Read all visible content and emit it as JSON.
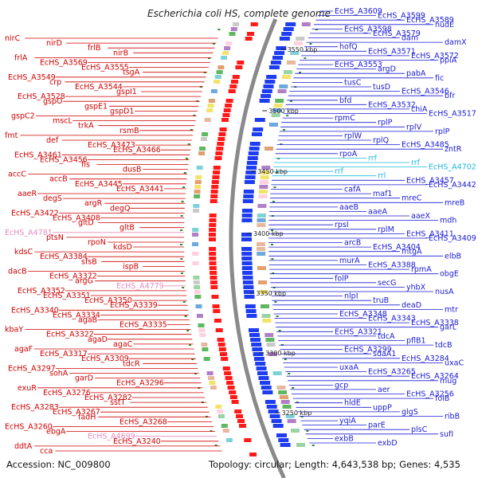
{
  "title": "Escherichia coli HS, complete genome",
  "footer": {
    "accession": "Accession: NC_009800",
    "summary": "Topology: circular; Length: 4,643,538 bp; Genes: 4,535"
  },
  "colors": {
    "left_label": "#d00000",
    "left_label_pink": "#e58cbd",
    "right_label": "#1a1ad6",
    "right_label_cyan": "#20b8e0",
    "backbone": "#8a8a8a",
    "tick": "#2e8b2e"
  },
  "kbp_marks": [
    "3550 kbp",
    "3500 kbp",
    "3450 kbp",
    "3400 kbp",
    "3350 kbp",
    "3300 kbp",
    "3250 kbp"
  ],
  "left_labels": [
    {
      "text": "nirC",
      "c": "red"
    },
    {
      "text": "nirD",
      "c": "red"
    },
    {
      "text": "frlB",
      "c": "red"
    },
    {
      "text": "nirB",
      "c": "red"
    },
    {
      "text": "frlA",
      "c": "red"
    },
    {
      "text": "EcHS_A3569",
      "c": "red"
    },
    {
      "text": "EcHS_A3555",
      "c": "red"
    },
    {
      "text": "tsgA",
      "c": "red"
    },
    {
      "text": "EcHS_A3549",
      "c": "red"
    },
    {
      "text": "crp",
      "c": "red"
    },
    {
      "text": "EcHS_A3544",
      "c": "red"
    },
    {
      "text": "gspI1",
      "c": "red"
    },
    {
      "text": "EcHS_A3528",
      "c": "red"
    },
    {
      "text": "gspO",
      "c": "red"
    },
    {
      "text": "gspE1",
      "c": "red"
    },
    {
      "text": "gspD1",
      "c": "red"
    },
    {
      "text": "gspC2",
      "c": "red"
    },
    {
      "text": "mscL",
      "c": "red"
    },
    {
      "text": "trkA",
      "c": "red"
    },
    {
      "text": "rsmB",
      "c": "red"
    },
    {
      "text": "fmt",
      "c": "red"
    },
    {
      "text": "def",
      "c": "red"
    },
    {
      "text": "EcHS_A3473",
      "c": "red"
    },
    {
      "text": "EcHS_A3466",
      "c": "red"
    },
    {
      "text": "EcHS_A3461",
      "c": "red"
    },
    {
      "text": "EcHS_A3456",
      "c": "red"
    },
    {
      "text": "fis",
      "c": "red"
    },
    {
      "text": "dusB",
      "c": "red"
    },
    {
      "text": "accC",
      "c": "red"
    },
    {
      "text": "accB",
      "c": "red"
    },
    {
      "text": "EcHS_A3445",
      "c": "red"
    },
    {
      "text": "EcHS_A3441",
      "c": "red"
    },
    {
      "text": "aaeR",
      "c": "red"
    },
    {
      "text": "degS",
      "c": "red"
    },
    {
      "text": "argR",
      "c": "red"
    },
    {
      "text": "degQ",
      "c": "red"
    },
    {
      "text": "EcHS_A3422",
      "c": "red"
    },
    {
      "text": "EcHS_A3408",
      "c": "red"
    },
    {
      "text": "gltD",
      "c": "red"
    },
    {
      "text": "gltB",
      "c": "red"
    },
    {
      "text": "EcHS_A4781",
      "c": "pink"
    },
    {
      "text": "ptsN",
      "c": "red"
    },
    {
      "text": "rpoN",
      "c": "red"
    },
    {
      "text": "kdsD",
      "c": "red"
    },
    {
      "text": "kdsC",
      "c": "red"
    },
    {
      "text": "EcHS_A3384",
      "c": "red"
    },
    {
      "text": "sfsB",
      "c": "red"
    },
    {
      "text": "ispB",
      "c": "red"
    },
    {
      "text": "dacB",
      "c": "red"
    },
    {
      "text": "EcHS_A3372",
      "c": "red"
    },
    {
      "text": "argG",
      "c": "red"
    },
    {
      "text": "EcHS_A4779",
      "c": "pink"
    },
    {
      "text": "EcHS_A3352",
      "c": "red"
    },
    {
      "text": "EcHS_A3351",
      "c": "red"
    },
    {
      "text": "EcHS_A3350",
      "c": "red"
    },
    {
      "text": "EcHS_A3339",
      "c": "red"
    },
    {
      "text": "EcHS_A3340",
      "c": "red"
    },
    {
      "text": "EcHS_A3334",
      "c": "red"
    },
    {
      "text": "agaB",
      "c": "red"
    },
    {
      "text": "EcHS_A3335",
      "c": "red"
    },
    {
      "text": "kbaY",
      "c": "red"
    },
    {
      "text": "EcHS_A3322",
      "c": "red"
    },
    {
      "text": "agaD",
      "c": "red"
    },
    {
      "text": "agaC",
      "c": "red"
    },
    {
      "text": "agaF",
      "c": "red"
    },
    {
      "text": "EcHS_A3317",
      "c": "red"
    },
    {
      "text": "EcHS_A3309",
      "c": "red"
    },
    {
      "text": "tdcR",
      "c": "red"
    },
    {
      "text": "EcHS_A3297",
      "c": "red"
    },
    {
      "text": "sohA",
      "c": "red"
    },
    {
      "text": "garD",
      "c": "red"
    },
    {
      "text": "EcHS_A3296",
      "c": "red"
    },
    {
      "text": "exuR",
      "c": "red"
    },
    {
      "text": "EcHS_A3276",
      "c": "red"
    },
    {
      "text": "EcHS_A3282",
      "c": "red"
    },
    {
      "text": "sstT",
      "c": "red"
    },
    {
      "text": "EcHS_A3283",
      "c": "red"
    },
    {
      "text": "EcHS_A3267",
      "c": "red"
    },
    {
      "text": "fadH",
      "c": "red"
    },
    {
      "text": "EcHS_A3268",
      "c": "red"
    },
    {
      "text": "EcHS_A3260",
      "c": "red"
    },
    {
      "text": "ebgA",
      "c": "red"
    },
    {
      "text": "EcHS_A4699",
      "c": "pink"
    },
    {
      "text": "EcHS_A3240",
      "c": "red"
    },
    {
      "text": "ddtA",
      "c": "red"
    },
    {
      "text": "cca",
      "c": "red"
    }
  ],
  "right_labels": [
    {
      "text": "EcHS_A3609",
      "c": "blue"
    },
    {
      "text": "EcHS_A3599",
      "c": "blue"
    },
    {
      "text": "EcHS_A3589",
      "c": "blue"
    },
    {
      "text": "nudE",
      "c": "blue"
    },
    {
      "text": "EcHS_A3598",
      "c": "blue"
    },
    {
      "text": "EcHS_A3579",
      "c": "blue"
    },
    {
      "text": "dam",
      "c": "blue"
    },
    {
      "text": "damX",
      "c": "blue"
    },
    {
      "text": "hofQ",
      "c": "blue"
    },
    {
      "text": "EcHS_A3571",
      "c": "blue"
    },
    {
      "text": "EcHS_A3572",
      "c": "blue"
    },
    {
      "text": "ppiA",
      "c": "blue"
    },
    {
      "text": "EcHS_A3553",
      "c": "blue"
    },
    {
      "text": "argD",
      "c": "blue"
    },
    {
      "text": "pabA",
      "c": "blue"
    },
    {
      "text": "fic",
      "c": "blue"
    },
    {
      "text": "tusC",
      "c": "blue"
    },
    {
      "text": "tusD",
      "c": "blue"
    },
    {
      "text": "EcHS_A3546",
      "c": "blue"
    },
    {
      "text": "bfr",
      "c": "blue"
    },
    {
      "text": "bfd",
      "c": "blue"
    },
    {
      "text": "EcHS_A3532",
      "c": "blue"
    },
    {
      "text": "chiA",
      "c": "blue"
    },
    {
      "text": "EcHS_A3517",
      "c": "blue"
    },
    {
      "text": "rpmC",
      "c": "blue"
    },
    {
      "text": "rplP",
      "c": "blue"
    },
    {
      "text": "rplV",
      "c": "blue"
    },
    {
      "text": "rplP",
      "c": "blue"
    },
    {
      "text": "rplW",
      "c": "blue"
    },
    {
      "text": "rplQ",
      "c": "blue"
    },
    {
      "text": "EcHS_A3485",
      "c": "blue"
    },
    {
      "text": "zntR",
      "c": "blue"
    },
    {
      "text": "rpoA",
      "c": "blue"
    },
    {
      "text": "rrf",
      "c": "cyan"
    },
    {
      "text": "rrf",
      "c": "cyan"
    },
    {
      "text": "EcHS_A4702",
      "c": "cyan"
    },
    {
      "text": "rrf",
      "c": "cyan"
    },
    {
      "text": "rrl",
      "c": "cyan"
    },
    {
      "text": "EcHS_A3457",
      "c": "blue"
    },
    {
      "text": "EcHS_A3442",
      "c": "blue"
    },
    {
      "text": "cafA",
      "c": "blue"
    },
    {
      "text": "maf1",
      "c": "blue"
    },
    {
      "text": "mreC",
      "c": "blue"
    },
    {
      "text": "mreB",
      "c": "blue"
    },
    {
      "text": "aaeB",
      "c": "blue"
    },
    {
      "text": "aaeA",
      "c": "blue"
    },
    {
      "text": "aaeX",
      "c": "blue"
    },
    {
      "text": "mdh",
      "c": "blue"
    },
    {
      "text": "rpsI",
      "c": "blue"
    },
    {
      "text": "rplM",
      "c": "blue"
    },
    {
      "text": "EcHS_A3411",
      "c": "blue"
    },
    {
      "text": "EcHS_A3409",
      "c": "blue"
    },
    {
      "text": "arcB",
      "c": "blue"
    },
    {
      "text": "EcHS_A3404",
      "c": "blue"
    },
    {
      "text": "mtgA",
      "c": "blue"
    },
    {
      "text": "elbB",
      "c": "blue"
    },
    {
      "text": "murA",
      "c": "blue"
    },
    {
      "text": "EcHS_A3388",
      "c": "blue"
    },
    {
      "text": "rpmA",
      "c": "blue"
    },
    {
      "text": "obgE",
      "c": "blue"
    },
    {
      "text": "folP",
      "c": "blue"
    },
    {
      "text": "secG",
      "c": "blue"
    },
    {
      "text": "yhbX",
      "c": "blue"
    },
    {
      "text": "nusA",
      "c": "blue"
    },
    {
      "text": "nlpI",
      "c": "blue"
    },
    {
      "text": "truB",
      "c": "blue"
    },
    {
      "text": "deaD",
      "c": "blue"
    },
    {
      "text": "mtr",
      "c": "blue"
    },
    {
      "text": "EcHS_A3348",
      "c": "blue"
    },
    {
      "text": "EcHS_A3343",
      "c": "blue"
    },
    {
      "text": "EcHS_A3338",
      "c": "blue"
    },
    {
      "text": "garL",
      "c": "blue"
    },
    {
      "text": "EcHS_A3321",
      "c": "blue"
    },
    {
      "text": "tdcA",
      "c": "blue"
    },
    {
      "text": "pflB1",
      "c": "blue"
    },
    {
      "text": "tdcB",
      "c": "blue"
    },
    {
      "text": "EcHS_A3299",
      "c": "blue"
    },
    {
      "text": "sdaA1",
      "c": "blue"
    },
    {
      "text": "EcHS_A3284",
      "c": "blue"
    },
    {
      "text": "uxaC",
      "c": "blue"
    },
    {
      "text": "uxaA",
      "c": "blue"
    },
    {
      "text": "EcHS_A3265",
      "c": "blue"
    },
    {
      "text": "EcHS_A3264",
      "c": "blue"
    },
    {
      "text": "mug",
      "c": "blue"
    },
    {
      "text": "gcp",
      "c": "blue"
    },
    {
      "text": "aer",
      "c": "blue"
    },
    {
      "text": "EcHS_A3256",
      "c": "blue"
    },
    {
      "text": "folB",
      "c": "blue"
    },
    {
      "text": "hldE",
      "c": "blue"
    },
    {
      "text": "uppP",
      "c": "blue"
    },
    {
      "text": "glgS",
      "c": "blue"
    },
    {
      "text": "ribB",
      "c": "blue"
    },
    {
      "text": "yqiA",
      "c": "blue"
    },
    {
      "text": "parE",
      "c": "blue"
    },
    {
      "text": "plsC",
      "c": "blue"
    },
    {
      "text": "sufI",
      "c": "blue"
    },
    {
      "text": "exbB",
      "c": "blue"
    },
    {
      "text": "exbD",
      "c": "blue"
    }
  ]
}
